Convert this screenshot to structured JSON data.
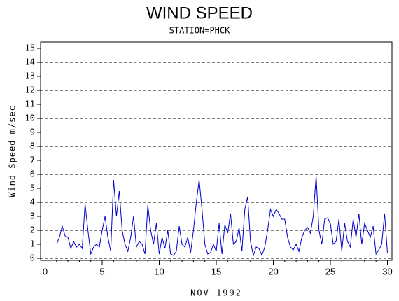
{
  "chart_data": {
    "type": "line",
    "title": "WIND SPEED",
    "subtitle": "STATION=PHCK",
    "x_label": "NOV 1992",
    "y_label": "Wind Speed m/sec",
    "xlim": [
      -0.4,
      30.4
    ],
    "ylim": [
      -0.15,
      15.45
    ],
    "xticks": [
      0,
      5,
      10,
      15,
      20,
      25,
      30
    ],
    "yticks": [
      0,
      1,
      2,
      3,
      4,
      5,
      6,
      7,
      8,
      9,
      10,
      11,
      12,
      13,
      14,
      15
    ],
    "grid": true,
    "x": [
      1,
      1.25,
      1.5,
      1.75,
      2,
      2.25,
      2.5,
      2.75,
      3,
      3.25,
      3.5,
      3.75,
      4,
      4.25,
      4.5,
      4.75,
      5,
      5.25,
      5.5,
      5.75,
      6,
      6.25,
      6.5,
      6.75,
      7,
      7.25,
      7.5,
      7.75,
      8,
      8.25,
      8.5,
      8.75,
      9,
      9.25,
      9.5,
      9.75,
      10,
      10.25,
      10.5,
      10.75,
      11,
      11.25,
      11.5,
      11.75,
      12,
      12.25,
      12.5,
      12.75,
      13,
      13.25,
      13.5,
      13.75,
      14,
      14.25,
      14.5,
      14.75,
      15,
      15.25,
      15.5,
      15.75,
      16,
      16.25,
      16.5,
      16.75,
      17,
      17.25,
      17.5,
      17.75,
      18,
      18.25,
      18.5,
      18.75,
      19,
      19.25,
      19.5,
      19.75,
      20,
      20.25,
      20.5,
      20.75,
      21,
      21.25,
      21.5,
      21.75,
      22,
      22.25,
      22.5,
      22.75,
      23,
      23.25,
      23.5,
      23.75,
      24,
      24.25,
      24.5,
      24.75,
      25,
      25.25,
      25.5,
      25.75,
      26,
      26.25,
      26.5,
      26.75,
      27,
      27.25,
      27.5,
      27.75,
      28,
      28.25,
      28.5,
      28.75,
      29,
      29.25,
      29.5,
      29.75,
      30
    ],
    "series": [
      {
        "name": "Wind Speed",
        "color": "#0000cc",
        "values": [
          1.0,
          1.5,
          2.3,
          1.6,
          1.5,
          0.7,
          1.2,
          0.8,
          1.0,
          0.7,
          3.9,
          2.0,
          0.3,
          0.8,
          1.0,
          0.8,
          2.0,
          3.0,
          1.5,
          0.5,
          5.6,
          3.0,
          4.8,
          2.0,
          1.0,
          0.5,
          1.5,
          3.0,
          0.8,
          1.2,
          1.0,
          0.3,
          3.8,
          2.0,
          1.0,
          2.5,
          0.3,
          1.5,
          0.7,
          2.0,
          0.3,
          0.2,
          0.5,
          2.3,
          1.0,
          0.8,
          1.5,
          0.4,
          2.0,
          4.0,
          5.6,
          3.5,
          1.0,
          0.3,
          0.4,
          1.0,
          0.5,
          2.5,
          0.3,
          2.4,
          1.8,
          3.2,
          1.0,
          1.2,
          2.2,
          0.5,
          3.5,
          4.4,
          1.2,
          0.2,
          0.8,
          0.7,
          0.2,
          0.8,
          2.0,
          3.5,
          3.0,
          3.5,
          3.2,
          2.8,
          2.8,
          1.5,
          0.8,
          0.6,
          1.0,
          0.5,
          1.5,
          2.0,
          2.2,
          1.8,
          3.0,
          5.9,
          2.0,
          1.0,
          2.8,
          2.9,
          2.5,
          1.0,
          1.2,
          2.8,
          0.5,
          2.5,
          1.2,
          0.8,
          2.8,
          1.5,
          3.2,
          1.0,
          2.5,
          2.0,
          1.5,
          2.3,
          0.3,
          0.6,
          1.0,
          3.2,
          0.4
        ]
      }
    ]
  }
}
